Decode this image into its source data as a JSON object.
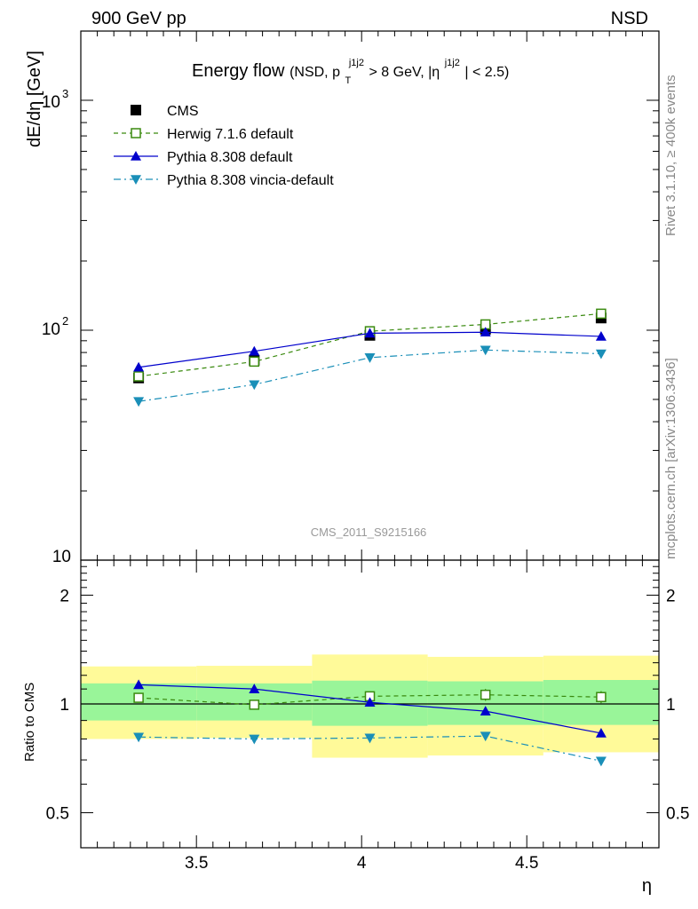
{
  "header": {
    "left": "900 GeV pp",
    "right": "NSD"
  },
  "side_labels": {
    "rivet": "Rivet 3.1.10, ≥ 400k events",
    "mcplots": "mcplots.cern.ch [arXiv:1306.3436]"
  },
  "watermark": "CMS_2011_S9215166",
  "chart_data": [
    {
      "type": "line",
      "title": {
        "main": "Energy flow",
        "detail_open": "(NSD, p",
        "detail_sub": "T",
        "detail_sup1": "j1j2",
        "detail_mid": " > 8 GeV, |η",
        "detail_sup2": "j1j2",
        "detail_close": "| < 2.5)"
      },
      "ylabel": "dE/dη [GeV]",
      "yscale": "log",
      "ylim": [
        10,
        2000
      ],
      "xlim": [
        3.15,
        4.9
      ],
      "y_tick_labels": {
        "ten": "10",
        "hundred": "10",
        "hundred_exp": "2",
        "thousand": "10",
        "thousand_exp": "3"
      },
      "x": [
        3.325,
        3.675,
        4.025,
        4.375,
        4.725
      ],
      "series": [
        {
          "name": "CMS",
          "values": [
            62,
            74,
            95,
            101,
            113
          ],
          "color": "#000000",
          "marker": "square-filled",
          "line": "none"
        },
        {
          "name": "Herwig 7.1.6 default",
          "values": [
            63,
            73,
            99,
            106,
            118
          ],
          "color": "#3a8a0f",
          "marker": "square-open",
          "line": "dashed"
        },
        {
          "name": "Pythia 8.308 default",
          "values": [
            69,
            81,
            97,
            98,
            94
          ],
          "color": "#0000cc",
          "marker": "triangle-up",
          "line": "solid"
        },
        {
          "name": "Pythia 8.308 vincia-default",
          "values": [
            49,
            58,
            76,
            82,
            79
          ],
          "color": "#1a8fb8",
          "marker": "triangle-down",
          "line": "dashdot"
        }
      ],
      "legend_position": "top-left"
    },
    {
      "type": "line",
      "ylabel": "Ratio to CMS",
      "xlabel": "η",
      "yscale": "log",
      "ylim": [
        0.4,
        2.5
      ],
      "xlim": [
        3.15,
        4.9
      ],
      "y_ticks": [
        0.5,
        1,
        2
      ],
      "y_tick_labels": [
        "0.5",
        "1",
        "2"
      ],
      "x_ticks": [
        3.5,
        4,
        4.5
      ],
      "x_tick_labels": [
        "3.5",
        "4",
        "4.5"
      ],
      "bins": [
        [
          3.15,
          3.5
        ],
        [
          3.5,
          3.85
        ],
        [
          3.85,
          4.2
        ],
        [
          4.2,
          4.55
        ],
        [
          4.55,
          4.9
        ]
      ],
      "band_stat": [
        [
          0.9,
          1.14
        ],
        [
          0.9,
          1.14
        ],
        [
          0.87,
          1.16
        ],
        [
          0.875,
          1.155
        ],
        [
          0.875,
          1.165
        ]
      ],
      "band_total": [
        [
          0.8,
          1.27
        ],
        [
          0.805,
          1.275
        ],
        [
          0.71,
          1.37
        ],
        [
          0.72,
          1.35
        ],
        [
          0.735,
          1.36
        ]
      ],
      "x": [
        3.325,
        3.675,
        4.025,
        4.375,
        4.725
      ],
      "series": [
        {
          "name": "Herwig 7.1.6 default",
          "values": [
            1.04,
            0.995,
            1.05,
            1.06,
            1.045
          ],
          "errors": [
            0.02,
            0.02,
            0.03,
            0.04,
            0.04
          ],
          "color": "#3a8a0f",
          "marker": "square-open",
          "line": "dashed"
        },
        {
          "name": "Pythia 8.308 default",
          "values": [
            1.13,
            1.1,
            1.01,
            0.955,
            0.83
          ],
          "color": "#0000cc",
          "marker": "triangle-up",
          "line": "solid"
        },
        {
          "name": "Pythia 8.308 vincia-default",
          "values": [
            0.81,
            0.8,
            0.805,
            0.815,
            0.695
          ],
          "color": "#1a8fb8",
          "marker": "triangle-down",
          "line": "dashdot"
        }
      ],
      "colors": {
        "band_stat": "#99f599",
        "band_total": "#fffa99"
      }
    }
  ]
}
